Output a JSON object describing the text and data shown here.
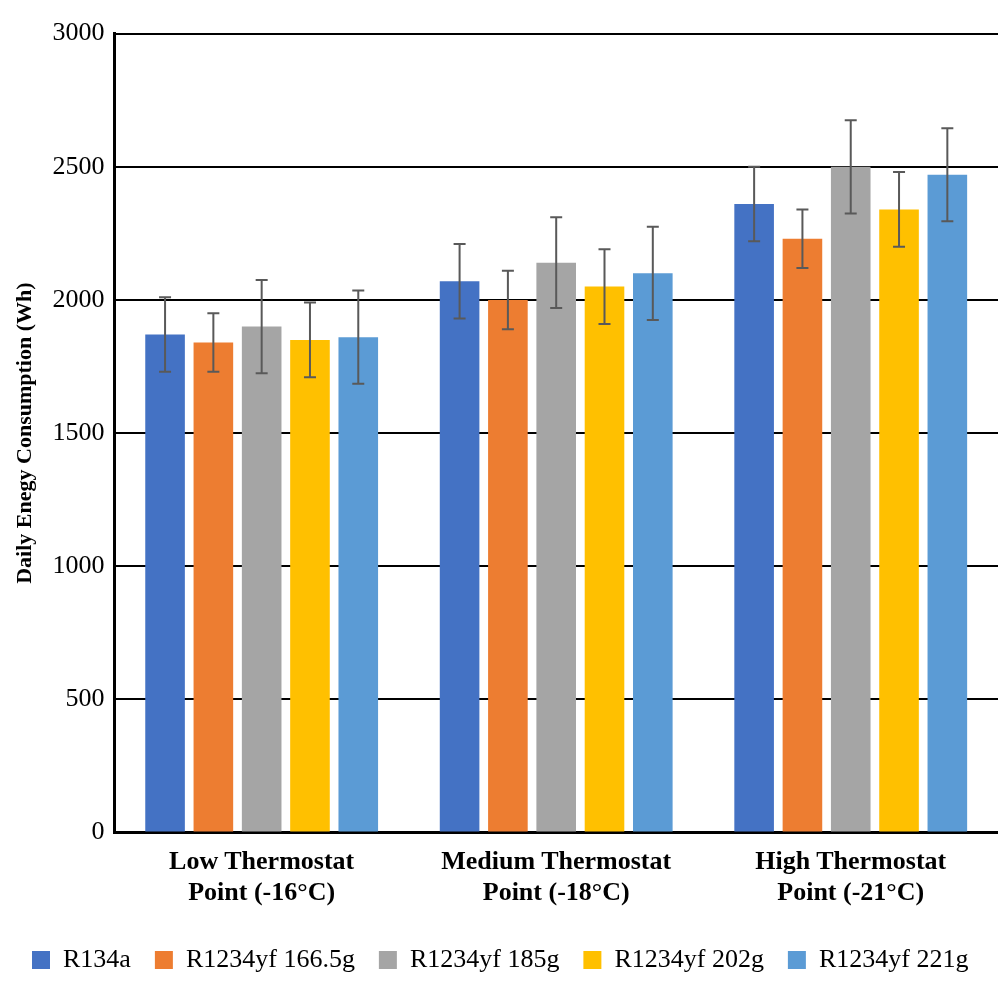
{
  "chart_data": {
    "type": "bar",
    "ylabel": "Daily Enegy Consumption (Wh)",
    "categories": [
      "Low Thermostat Point (-16°C)",
      "Medium Thermostat Point (-18°C)",
      "High Thermostat Point (-21°C)"
    ],
    "series": [
      {
        "name": "R134a",
        "color": "#4472c4",
        "values": [
          1870,
          2070,
          2360
        ],
        "errors": [
          140,
          140,
          140
        ]
      },
      {
        "name": "R1234yf 166.5g",
        "color": "#ed7d31",
        "values": [
          1840,
          2000,
          2230
        ],
        "errors": [
          110,
          110,
          110
        ]
      },
      {
        "name": "R1234yf 185g",
        "color": "#a5a5a5",
        "values": [
          1900,
          2140,
          2500
        ],
        "errors": [
          175,
          170,
          175
        ]
      },
      {
        "name": "R1234yf 202g",
        "color": "#ffc000",
        "values": [
          1850,
          2050,
          2340
        ],
        "errors": [
          140,
          140,
          140
        ]
      },
      {
        "name": "R1234yf 221g",
        "color": "#5b9bd5",
        "values": [
          1860,
          2100,
          2470
        ],
        "errors": [
          175,
          175,
          175
        ]
      }
    ],
    "ylim": [
      0,
      3000
    ],
    "yticks": [
      0,
      500,
      1000,
      1500,
      2000,
      2500,
      3000
    ],
    "grid": "y",
    "legend": "bottom"
  }
}
